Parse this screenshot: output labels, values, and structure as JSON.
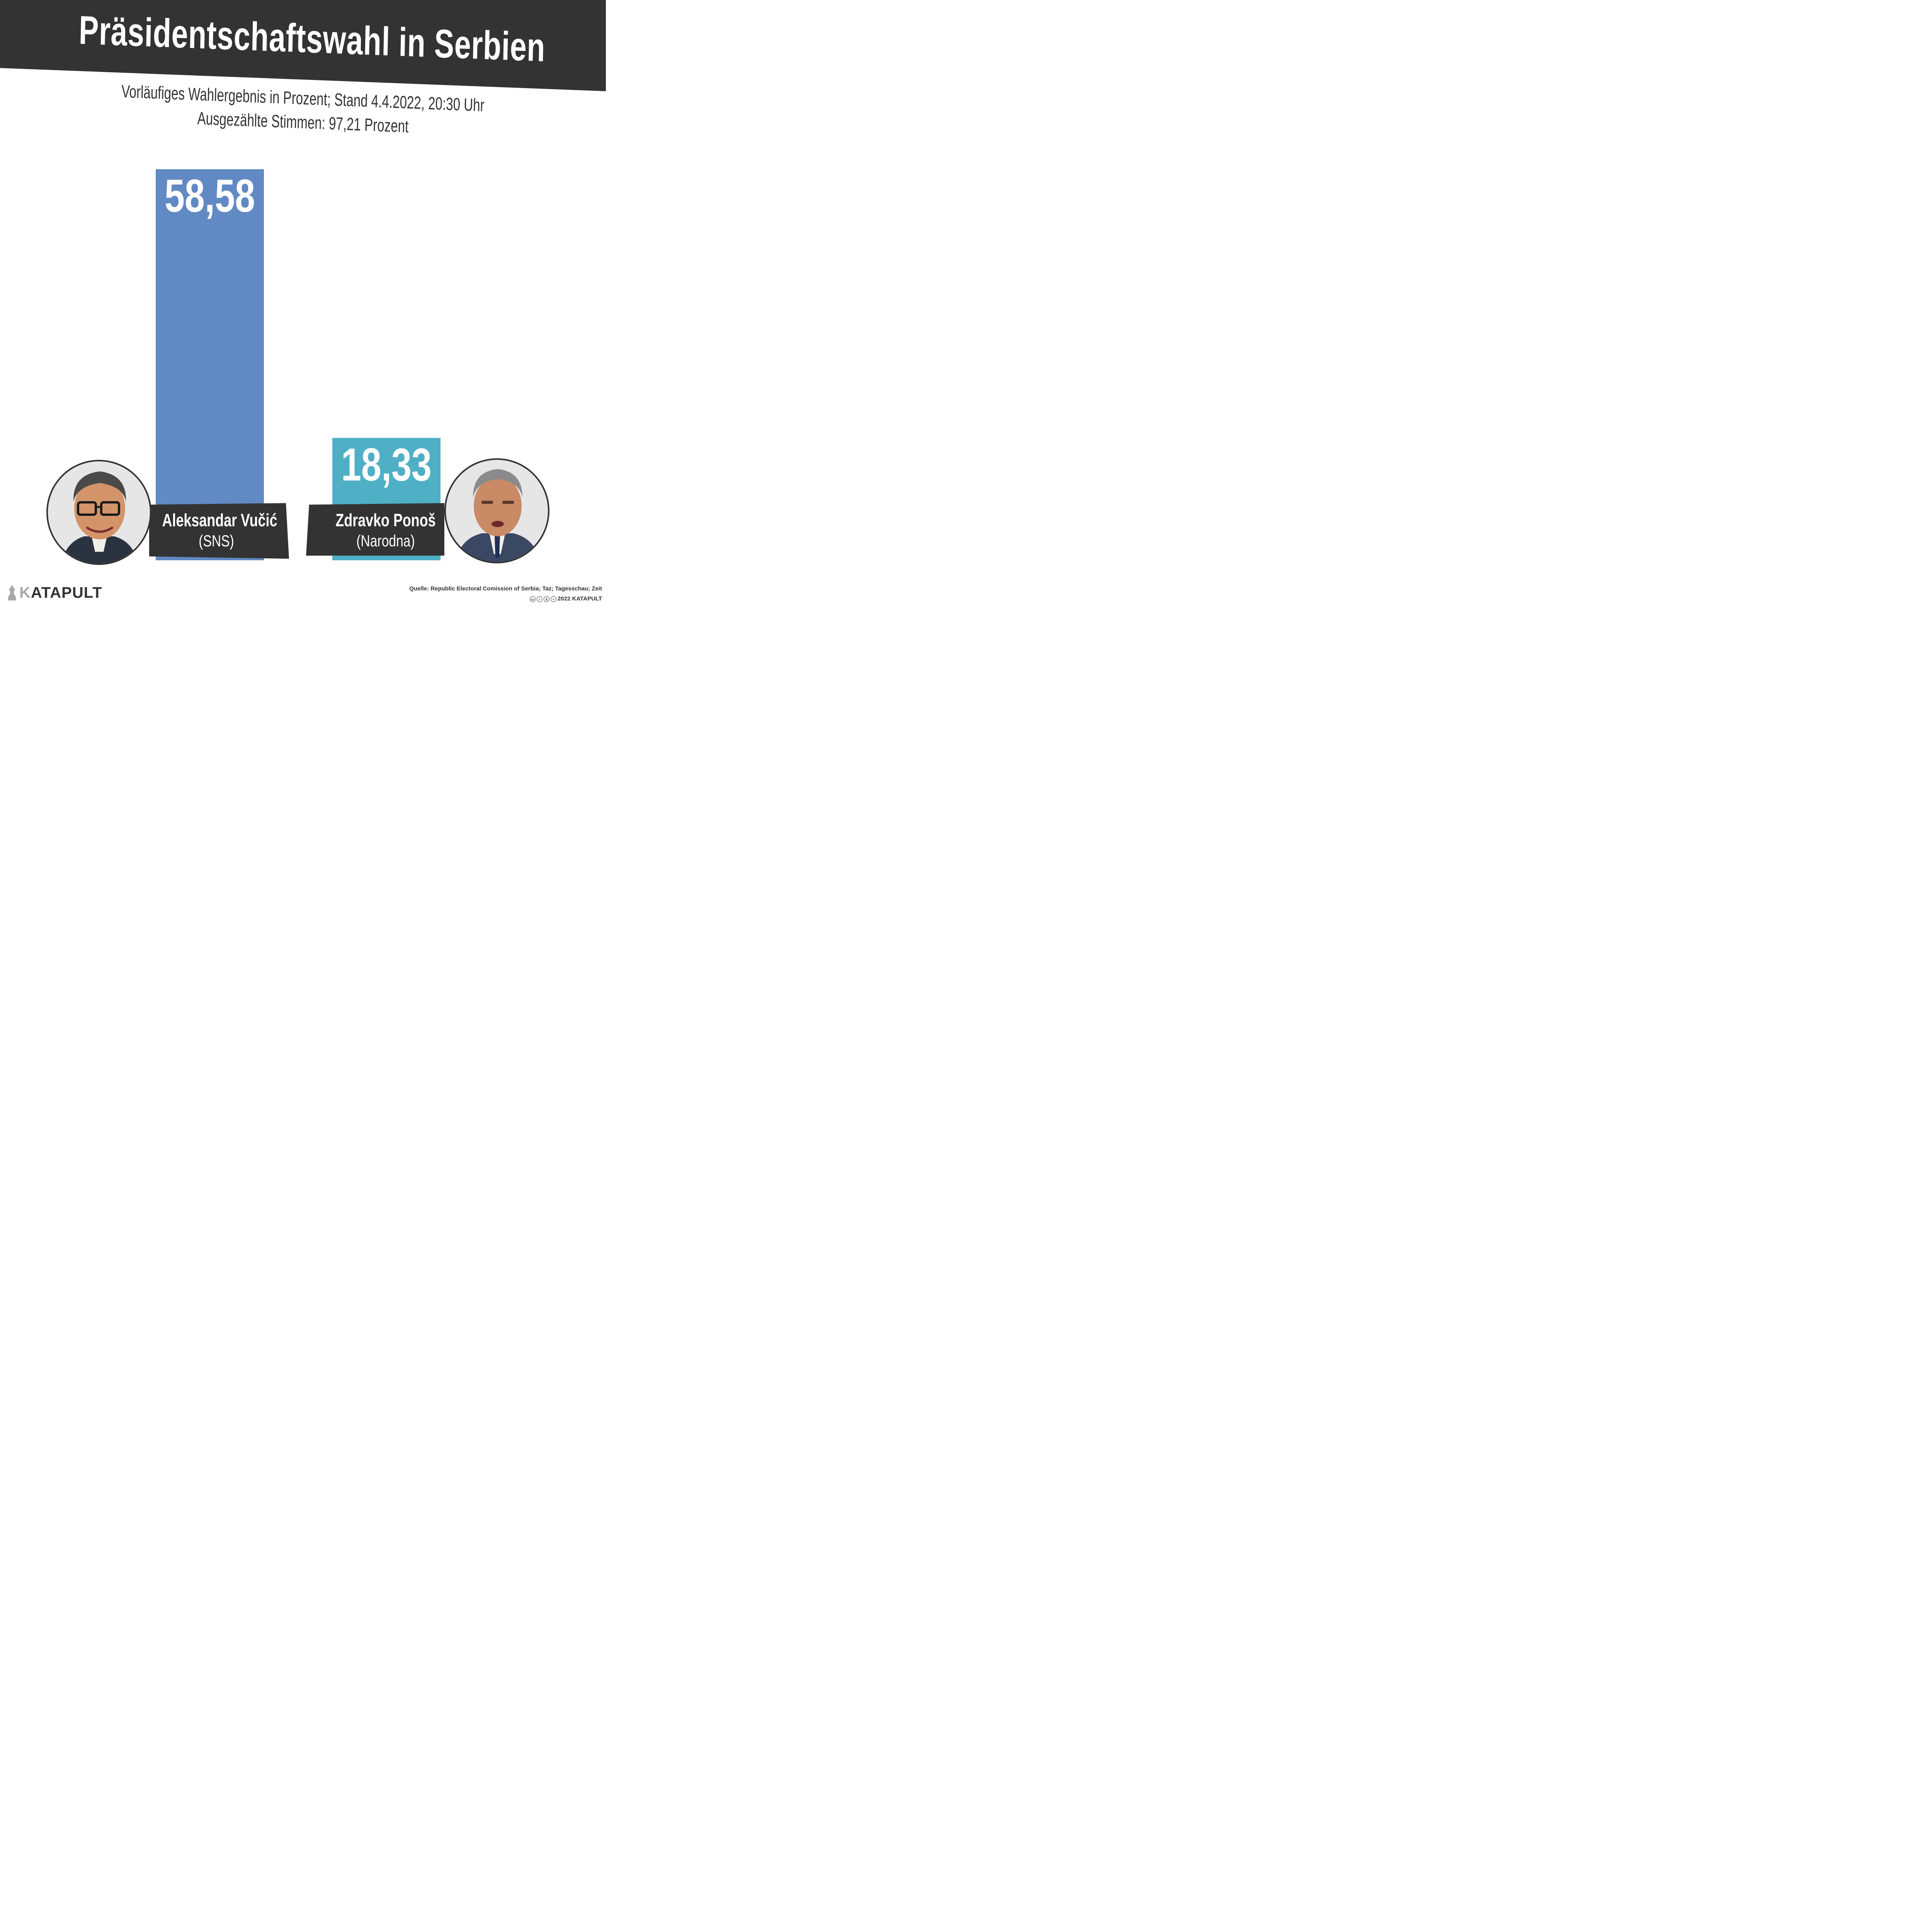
{
  "title": "Präsidentschaftswahl in Serbien",
  "subtitle_line1": "Vorläufiges Wahlergebnis in Prozent; Stand 4.4.2022, 20:30 Uhr",
  "subtitle_line2": "Ausgezählte Stimmen: 97,21 Prozent",
  "colors": {
    "banner": "#333333",
    "bar_vucic": "#6189c4",
    "bar_ponos": "#4fafc5",
    "label_box": "#333333",
    "background": "#ffffff"
  },
  "chart_data": {
    "type": "bar",
    "title": "Präsidentschaftswahl in Serbien",
    "categories": [
      "Aleksandar Vučić",
      "Zdravko Ponoš"
    ],
    "values": [
      58.58,
      18.33
    ],
    "value_labels": [
      "58,58",
      "18,33"
    ],
    "parties": [
      "(SNS)",
      "(Narodna)"
    ],
    "bar_colors": [
      "#6189c4",
      "#4fafc5"
    ],
    "unit": "Prozent",
    "xlabel": "",
    "ylabel": "",
    "grid": false,
    "legend": "none"
  },
  "candidates": [
    {
      "name": "Aleksandar Vučić",
      "party": "(SNS)",
      "portrait_icon": "portrait-vucic"
    },
    {
      "name": "Zdravko Ponoš",
      "party": "(Narodna)",
      "portrait_icon": "portrait-ponos"
    }
  ],
  "logo": {
    "k": "K",
    "rest": "ATAPULT",
    "icon": "rocket-icon"
  },
  "source": "Quelle: Republic Electoral Comission of Serbia; Taz; Tagesschau; Zeit",
  "copyright": "2022 KATAPULT",
  "license_icons": [
    "cc-icon",
    "by-icon",
    "nc-icon",
    "nd-icon"
  ]
}
